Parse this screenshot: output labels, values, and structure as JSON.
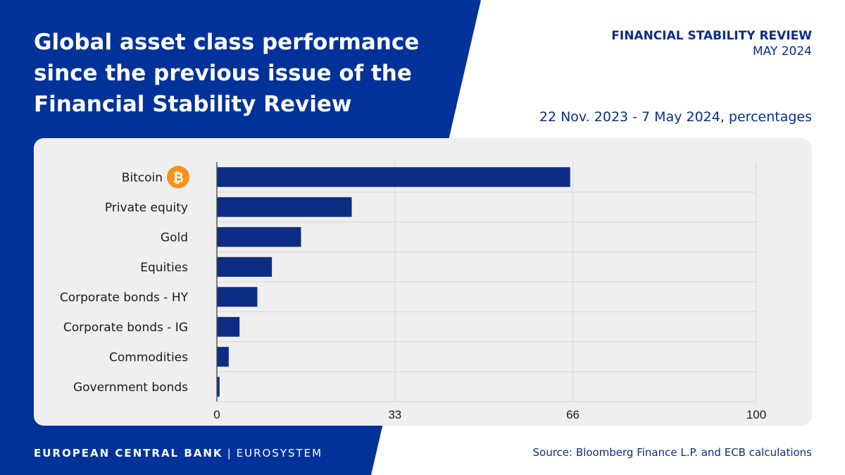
{
  "header": {
    "title_lines": [
      "Global asset class performance",
      "since the previous issue of the",
      "Financial Stability Review"
    ],
    "publication": "FINANCIAL STABILITY REVIEW",
    "issue": "MAY 2024",
    "subtitle": "22 Nov. 2023 - 7 May 2024, percentages"
  },
  "footer": {
    "bank": "EUROPEAN CENTRAL BANK",
    "separator": "|",
    "system": "EUROSYSTEM",
    "source": "Source: Bloomberg Finance L.P. and ECB calculations"
  },
  "colors": {
    "brand_blue": "#003299",
    "bar_blue": "#0c2d83",
    "bitcoin_orange": "#f7931a"
  },
  "chart_data": {
    "type": "bar",
    "orientation": "horizontal",
    "categories": [
      "Bitcoin",
      "Private equity",
      "Gold",
      "Equities",
      "Corporate bonds - HY",
      "Corporate bonds - IG",
      "Commodities",
      "Government bonds"
    ],
    "values": [
      65.5,
      25,
      15.6,
      10.2,
      7.5,
      4.2,
      2.2,
      0.5
    ],
    "xlim": [
      0,
      100
    ],
    "xticks": [
      0,
      33,
      66,
      100
    ],
    "category_icons": {
      "Bitcoin": "bitcoin-icon"
    },
    "grid": true
  }
}
